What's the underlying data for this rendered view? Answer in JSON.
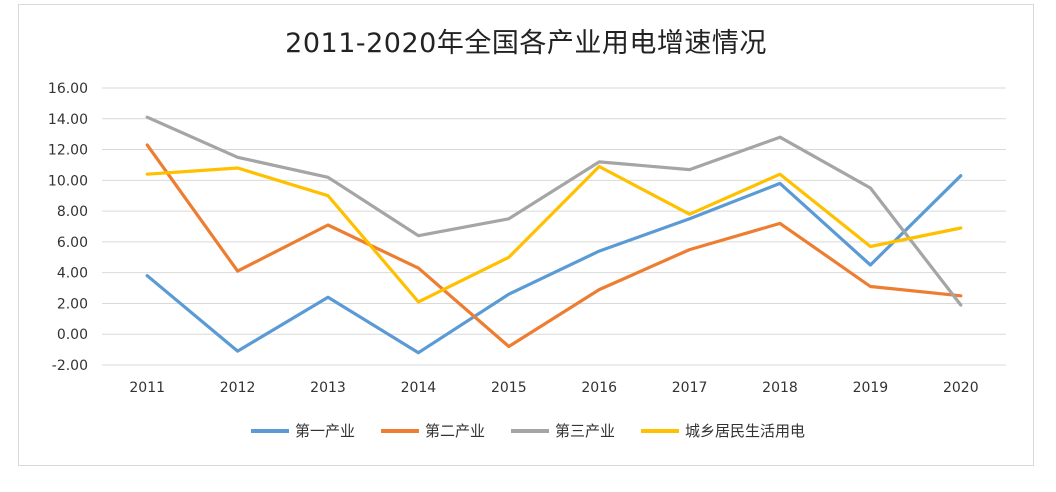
{
  "chart_data": {
    "type": "line",
    "title": "2011-2020年全国各产业用电增速情况",
    "categories": [
      "2011",
      "2012",
      "2013",
      "2014",
      "2015",
      "2016",
      "2017",
      "2018",
      "2019",
      "2020"
    ],
    "ylim": [
      -2,
      16
    ],
    "yticks": [
      "16.00",
      "14.00",
      "12.00",
      "10.00",
      "8.00",
      "6.00",
      "4.00",
      "2.00",
      "0.00",
      "-2.00"
    ],
    "grid": true,
    "legend_position": "bottom",
    "series": [
      {
        "name": "第一产业",
        "color": "#5b9bd5",
        "values": [
          3.8,
          -1.1,
          2.4,
          -1.2,
          2.6,
          5.4,
          7.5,
          9.8,
          4.5,
          10.3
        ]
      },
      {
        "name": "第二产业",
        "color": "#ed7d31",
        "values": [
          12.3,
          4.1,
          7.1,
          4.3,
          -0.8,
          2.9,
          5.5,
          7.2,
          3.1,
          2.5
        ]
      },
      {
        "name": "第三产业",
        "color": "#a5a5a5",
        "values": [
          14.1,
          11.5,
          10.2,
          6.4,
          7.5,
          11.2,
          10.7,
          12.8,
          9.5,
          1.9
        ]
      },
      {
        "name": "城乡居民生活用电",
        "color": "#ffc000",
        "values": [
          10.4,
          10.8,
          9.0,
          2.1,
          5.0,
          10.9,
          7.8,
          10.4,
          5.7,
          6.9
        ]
      }
    ]
  }
}
